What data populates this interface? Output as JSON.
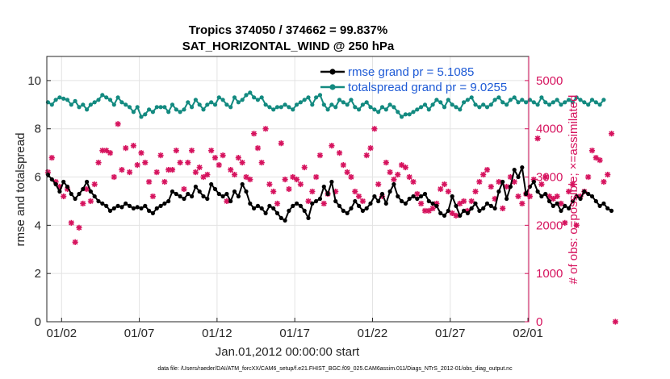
{
  "chart_data": {
    "type": "line",
    "title": "Tropics 374050 / 374662 = 99.837%",
    "subtitle": "SAT_HORIZONTAL_WIND @ 250 hPa",
    "xlabel": "Jan.01,2012 00:00:00 start",
    "ylabel_left": "rmse and totalspread",
    "ylabel_right": "# of obs: o=possible; ×=assimilated",
    "footer": "data file: /Users/raeder/DAI/ATM_forcXX/CAM6_setup/f.e21.FHIST_BGC.f09_025.CAM6assim.011/Diags_NTrS_2012-01/obs_diag_output.nc",
    "xlim": [
      0.55,
      31.55
    ],
    "ylim_left": [
      0,
      11
    ],
    "ylim_right": [
      0,
      5500
    ],
    "xticks": [
      1.5,
      6.5,
      11.5,
      16.5,
      21.5,
      26.5,
      31.5
    ],
    "xtick_labels": [
      "01/02",
      "01/07",
      "01/12",
      "01/17",
      "01/22",
      "01/27",
      "02/01"
    ],
    "yticks_left": [
      0,
      2,
      4,
      6,
      8,
      10
    ],
    "yticks_right": [
      0,
      1000,
      2000,
      3000,
      4000,
      5000
    ],
    "legend_position": "top-right",
    "colors": {
      "rmse": "#000000",
      "spread": "#138a80",
      "obs": "#d6135e"
    },
    "series": [
      {
        "name": "rmse grand pr = 5.1085",
        "axis": "left",
        "color": "#000000",
        "start_day": 0.625,
        "step_days": 0.25,
        "values": [
          6.1,
          5.9,
          5.7,
          5.4,
          5.8,
          5.6,
          5.3,
          5.1,
          5.3,
          5.5,
          5.8,
          5.4,
          5.2,
          5.0,
          4.9,
          4.8,
          4.6,
          4.7,
          4.8,
          4.75,
          4.9,
          4.8,
          4.7,
          4.75,
          4.7,
          4.8,
          4.6,
          4.5,
          4.7,
          4.8,
          4.9,
          5.0,
          5.4,
          5.3,
          5.2,
          5.1,
          5.3,
          5.2,
          5.6,
          5.4,
          5.2,
          5.1,
          5.7,
          5.5,
          5.3,
          5.2,
          5.3,
          5.0,
          5.4,
          5.2,
          5.7,
          5.4,
          4.9,
          4.7,
          4.8,
          4.7,
          4.5,
          4.8,
          4.7,
          4.5,
          4.3,
          4.2,
          4.6,
          4.8,
          4.9,
          4.8,
          4.6,
          4.3,
          4.9,
          5.0,
          5.1,
          5.6,
          5.3,
          5.8,
          5.0,
          4.8,
          4.6,
          4.5,
          4.7,
          5.0,
          4.8,
          4.6,
          4.7,
          4.9,
          5.2,
          5.0,
          5.3,
          4.9,
          5.4,
          5.7,
          5.2,
          5.0,
          4.9,
          5.1,
          5.2,
          5.1,
          5.2,
          5.3,
          5.0,
          4.9,
          4.8,
          4.5,
          4.4,
          4.6,
          5.2,
          4.8,
          4.4,
          4.6,
          4.5,
          4.7,
          4.9,
          4.6,
          4.7,
          4.9,
          4.8,
          4.7,
          5.4,
          5.8,
          5.1,
          5.6,
          6.3,
          6.0,
          6.4,
          5.3,
          5.6,
          5.8,
          5.4,
          5.2,
          5.3,
          5.0,
          4.8,
          4.9,
          4.6,
          4.8,
          4.7,
          5.0,
          5.2,
          5.1,
          5.4,
          5.3,
          5.2,
          5.0,
          4.8,
          4.9,
          4.7,
          4.6
        ]
      },
      {
        "name": "totalspread grand pr = 9.0255",
        "axis": "left",
        "color": "#138a80",
        "start_day": 0.625,
        "step_days": 0.25,
        "values": [
          9.1,
          9.0,
          9.2,
          9.3,
          9.25,
          9.2,
          9.0,
          9.15,
          8.9,
          9.0,
          8.8,
          9.0,
          9.1,
          9.2,
          9.4,
          9.3,
          9.2,
          9.0,
          9.3,
          9.1,
          9.0,
          8.9,
          8.7,
          8.9,
          8.5,
          8.6,
          8.8,
          8.7,
          8.9,
          8.9,
          8.9,
          8.7,
          9.0,
          8.8,
          8.7,
          8.8,
          9.1,
          8.9,
          9.2,
          9.0,
          8.8,
          9.0,
          9.1,
          9.0,
          9.3,
          9.2,
          9.0,
          8.9,
          9.3,
          9.1,
          9.2,
          9.4,
          9.5,
          9.3,
          9.2,
          9.3,
          9.0,
          8.9,
          8.8,
          8.9,
          8.9,
          9.0,
          8.9,
          8.8,
          9.0,
          9.1,
          9.2,
          9.3,
          9.0,
          9.3,
          9.4,
          9.0,
          8.8,
          9.0,
          8.9,
          9.2,
          9.1,
          9.0,
          9.2,
          8.9,
          8.8,
          9.0,
          9.1,
          8.9,
          8.8,
          8.7,
          8.9,
          8.8,
          9.0,
          8.9,
          8.7,
          8.5,
          8.6,
          8.6,
          8.7,
          8.8,
          8.9,
          9.0,
          8.8,
          9.0,
          9.2,
          9.1,
          8.9,
          9.2,
          9.0,
          8.9,
          8.8,
          9.1,
          9.2,
          9.3,
          9.0,
          8.9,
          9.0,
          8.9,
          9.0,
          9.2,
          9.3,
          9.1,
          9.0,
          9.2,
          9.3,
          9.1,
          9.2,
          9.1,
          9.2,
          9.1,
          9.0,
          9.3,
          9.1,
          9.0,
          9.1,
          9.2,
          9.0,
          9.1,
          9.2,
          9.1,
          9.3,
          9.2,
          9.1,
          9.0,
          9.2,
          9.1,
          9.0,
          9.2
        ]
      },
      {
        "name": "# of obs assimilated",
        "axis": "right",
        "color": "#d6135e",
        "start_day": 0.625,
        "step_days": 0.25,
        "values": [
          3100,
          3400,
          2900,
          2800,
          2600,
          2750,
          2050,
          1650,
          1950,
          2450,
          2750,
          2500,
          2850,
          3300,
          3550,
          3550,
          3500,
          3000,
          4100,
          3150,
          3600,
          3100,
          3650,
          3250,
          3500,
          3300,
          2900,
          2600,
          3100,
          3450,
          2900,
          3150,
          3150,
          3550,
          3300,
          2750,
          3300,
          3550,
          3100,
          3200,
          3000,
          3050,
          3550,
          3400,
          3250,
          3450,
          2500,
          3150,
          3050,
          3400,
          3300,
          3000,
          2950,
          3900,
          3600,
          3300,
          4000,
          2850,
          2700,
          2450,
          3700,
          2950,
          2750,
          3000,
          2950,
          2850,
          3200,
          2500,
          2700,
          3000,
          3450,
          2450,
          2650,
          3650,
          2700,
          3500,
          3250,
          3100,
          3000,
          2700,
          2600,
          2500,
          3450,
          3600,
          4000,
          2850,
          2600,
          3300,
          3100,
          2950,
          3050,
          3250,
          3200,
          3000,
          2900,
          2650,
          2450,
          2300,
          2300,
          2350,
          2450,
          2750,
          2850,
          2700,
          2250,
          2200,
          2450,
          2500,
          2300,
          2500,
          2700,
          2900,
          3050,
          3150,
          2800,
          2550,
          2900,
          2350,
          2800,
          3000,
          2900,
          2600,
          2450,
          2650,
          2600,
          2950,
          3800,
          2850,
          3000,
          2600,
          2550,
          2600,
          2450,
          2050,
          2700,
          2850,
          2000,
          2600,
          2700,
          3000,
          3550,
          3400,
          3350,
          2900,
          3050,
          3900,
          0
        ]
      }
    ]
  }
}
